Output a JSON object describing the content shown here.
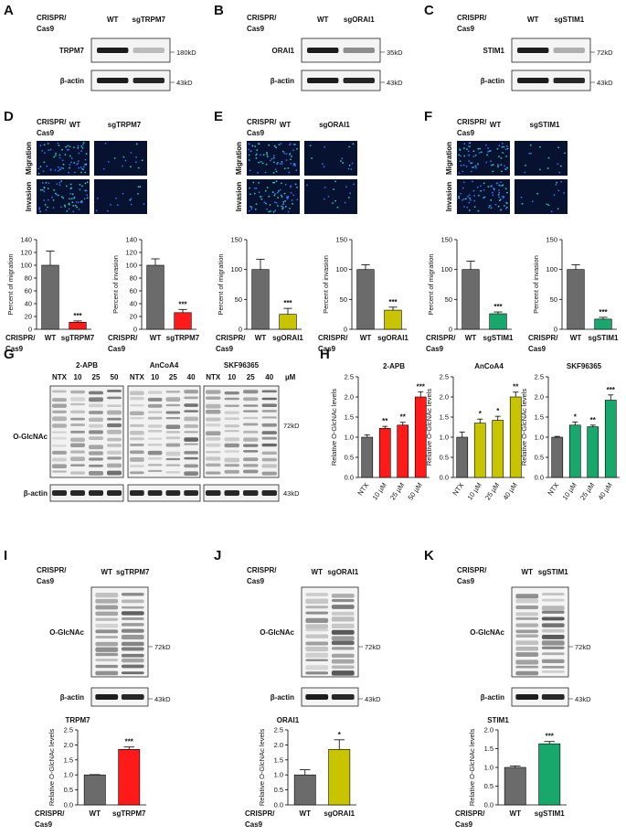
{
  "letters": [
    "A",
    "B",
    "C",
    "D",
    "E",
    "F",
    "G",
    "H",
    "I",
    "J",
    "K"
  ],
  "blots": [
    {
      "header": [
        "CRISPR/",
        "Cas9"
      ],
      "lanes": [
        "WT",
        "sgTRPM7"
      ],
      "rows": [
        {
          "label": "TRPM7",
          "marker": "180kD"
        },
        {
          "label": "β-actin",
          "marker": "43kD"
        }
      ]
    },
    {
      "header": [
        "CRISPR/",
        "Cas9"
      ],
      "lanes": [
        "WT",
        "sgORAI1"
      ],
      "rows": [
        {
          "label": "ORAI1",
          "marker": "35kD"
        },
        {
          "label": "β-actin",
          "marker": "43kD"
        }
      ]
    },
    {
      "header": [
        "CRISPR/",
        "Cas9"
      ],
      "lanes": [
        "WT",
        "sgSTIM1"
      ],
      "rows": [
        {
          "label": "STIM1",
          "marker": "72kD"
        },
        {
          "label": "β-actin",
          "marker": "43kD"
        }
      ]
    },
    {
      "header": [
        "CRISPR/",
        "Cas9"
      ],
      "lanes": [
        "WT",
        "sgTRPM7"
      ],
      "rows": [
        {
          "label": "O-GlcNAc",
          "marker": "72kD"
        },
        {
          "label": "β-actin",
          "marker": "43kD"
        }
      ]
    },
    {
      "header": [
        "CRISPR/",
        "Cas9"
      ],
      "lanes": [
        "WT",
        "sgORAI1"
      ],
      "rows": [
        {
          "label": "O-GlcNAc",
          "marker": "72kD"
        },
        {
          "label": "β-actin",
          "marker": "43kD"
        }
      ]
    },
    {
      "header": [
        "CRISPR/",
        "Cas9"
      ],
      "lanes": [
        "WT",
        "sgSTIM1"
      ],
      "rows": [
        {
          "label": "O-GlcNAc",
          "marker": "72kD"
        },
        {
          "label": "β-actin",
          "marker": "43kD"
        }
      ]
    }
  ],
  "images": [
    {
      "header": [
        "CRISPR/",
        "Cas9"
      ],
      "lanes": [
        "WT",
        "sgTRPM7"
      ],
      "rows": [
        "Migration",
        "Invasion"
      ]
    },
    {
      "header": [
        "CRISPR/",
        "Cas9"
      ],
      "lanes": [
        "WT",
        "sgORAI1"
      ],
      "rows": [
        "Migration",
        "Invasion"
      ]
    },
    {
      "header": [
        "CRISPR/",
        "Cas9"
      ],
      "lanes": [
        "WT",
        "sgSTIM1"
      ],
      "rows": [
        "Migration",
        "Invasion"
      ]
    }
  ],
  "gel": {
    "groups": [
      {
        "name": "2-APB",
        "lanes": [
          "NTX",
          "10",
          "25",
          "50"
        ]
      },
      {
        "name": "AnCoA4",
        "lanes": [
          "NTX",
          "10",
          "25",
          "40"
        ]
      },
      {
        "name": "SKF96365",
        "lanes": [
          "NTX",
          "10",
          "25",
          "40"
        ]
      }
    ],
    "unit": "µM",
    "rows": [
      {
        "label": "O-GlcNAc",
        "marker": "72kD"
      },
      {
        "label": "β-actin",
        "marker": "43kD"
      }
    ]
  },
  "chart_data": [
    {
      "type": "bar",
      "ylabel": "Percent of migration",
      "xlabel": [
        "CRISPR/",
        "Cas9"
      ],
      "categories": [
        "WT",
        "sgTRPM7"
      ],
      "values": [
        100,
        11
      ],
      "errors": [
        22,
        2
      ],
      "colors": [
        "#6b6b6b",
        "#ff1a1a"
      ],
      "annotations": [
        null,
        "***"
      ],
      "ylim": [
        0,
        140
      ],
      "yticks": [
        0,
        20,
        40,
        60,
        80,
        100,
        120,
        140
      ]
    },
    {
      "type": "bar",
      "ylabel": "Percent of invasion",
      "xlabel": [
        "CRISPR/",
        "Cas9"
      ],
      "categories": [
        "WT",
        "sgTRPM7"
      ],
      "values": [
        100,
        26
      ],
      "errors": [
        10,
        5
      ],
      "colors": [
        "#6b6b6b",
        "#ff1a1a"
      ],
      "annotations": [
        null,
        "***"
      ],
      "ylim": [
        0,
        140
      ],
      "yticks": [
        0,
        20,
        40,
        60,
        80,
        100,
        120,
        140
      ]
    },
    {
      "type": "bar",
      "ylabel": "Percent of migration",
      "xlabel": [
        "CRISPR/",
        "Cas9"
      ],
      "categories": [
        "WT",
        "sgORAI1"
      ],
      "values": [
        100,
        25
      ],
      "errors": [
        17,
        10
      ],
      "colors": [
        "#6b6b6b",
        "#c9c400"
      ],
      "annotations": [
        null,
        "***"
      ],
      "ylim": [
        0,
        150
      ],
      "yticks": [
        0,
        50,
        100,
        150
      ]
    },
    {
      "type": "bar",
      "ylabel": "Percent of invasion",
      "xlabel": [
        "CRISPR/",
        "Cas9"
      ],
      "categories": [
        "WT",
        "sgORAI1"
      ],
      "values": [
        100,
        32
      ],
      "errors": [
        8,
        5
      ],
      "colors": [
        "#6b6b6b",
        "#c9c400"
      ],
      "annotations": [
        null,
        "***"
      ],
      "ylim": [
        0,
        150
      ],
      "yticks": [
        0,
        50,
        100,
        150
      ]
    },
    {
      "type": "bar",
      "ylabel": "Percent of migration",
      "xlabel": [
        "CRISPR/",
        "Cas9"
      ],
      "categories": [
        "WT",
        "sgSTIM1"
      ],
      "values": [
        100,
        26
      ],
      "errors": [
        14,
        3
      ],
      "colors": [
        "#6b6b6b",
        "#18a86b"
      ],
      "annotations": [
        null,
        "***"
      ],
      "ylim": [
        0,
        150
      ],
      "yticks": [
        0,
        50,
        100,
        150
      ]
    },
    {
      "type": "bar",
      "ylabel": "Percent of invasion",
      "xlabel": [
        "CRISPR/",
        "Cas9"
      ],
      "categories": [
        "WT",
        "sgSTIM1"
      ],
      "values": [
        100,
        17
      ],
      "errors": [
        8,
        3
      ],
      "colors": [
        "#6b6b6b",
        "#18a86b"
      ],
      "annotations": [
        null,
        "***"
      ],
      "ylim": [
        0,
        150
      ],
      "yticks": [
        0,
        50,
        100,
        150
      ]
    },
    {
      "type": "bar",
      "title": "2-APB",
      "ylabel": "Relative O-GlcNAc levels",
      "categories": [
        "NTX",
        "10 µM",
        "25 µM",
        "50 µM"
      ],
      "values": [
        1.0,
        1.22,
        1.3,
        2.0
      ],
      "errors": [
        0.06,
        0.05,
        0.07,
        0.13
      ],
      "colors": [
        "#6b6b6b",
        "#ff1a1a",
        "#ff1a1a",
        "#ff1a1a"
      ],
      "annotations": [
        null,
        "**",
        "**",
        "***"
      ],
      "ylim": [
        0,
        2.5
      ],
      "yticks": [
        {
          "value": 0,
          "label": "0.0"
        },
        0.5,
        {
          "value": 1,
          "label": "1.0"
        },
        1.5,
        {
          "value": 2,
          "label": "2.0"
        },
        2.5
      ]
    },
    {
      "type": "bar",
      "title": "AnCoA4",
      "ylabel": "Relative O-GlcNAc levels",
      "categories": [
        "NTX",
        "10 µM",
        "25 µM",
        "40 µM"
      ],
      "values": [
        1.0,
        1.35,
        1.42,
        2.0
      ],
      "errors": [
        0.13,
        0.1,
        0.1,
        0.12
      ],
      "colors": [
        "#6b6b6b",
        "#c9c400",
        "#c9c400",
        "#c9c400"
      ],
      "annotations": [
        null,
        "*",
        "*",
        "**"
      ],
      "ylim": [
        0,
        2.5
      ],
      "yticks": [
        {
          "value": 0,
          "label": "0.0"
        },
        0.5,
        {
          "value": 1,
          "label": "1.0"
        },
        1.5,
        {
          "value": 2,
          "label": "2.0"
        },
        2.5
      ]
    },
    {
      "type": "bar",
      "title": "SKF96365",
      "ylabel": "Relative O-GlcNAc levels",
      "categories": [
        "NTX",
        "10 µM",
        "25 µM",
        "40 µM"
      ],
      "values": [
        1.0,
        1.3,
        1.26,
        1.92
      ],
      "errors": [
        0.02,
        0.08,
        0.04,
        0.13
      ],
      "colors": [
        "#6b6b6b",
        "#18a86b",
        "#18a86b",
        "#18a86b"
      ],
      "annotations": [
        null,
        "*",
        "**",
        "***"
      ],
      "ylim": [
        0,
        2.5
      ],
      "yticks": [
        {
          "value": 0,
          "label": "0.0"
        },
        0.5,
        {
          "value": 1,
          "label": "1.0"
        },
        1.5,
        {
          "value": 2,
          "label": "2.0"
        },
        2.5
      ]
    },
    {
      "type": "bar",
      "title": "TRPM7",
      "ylabel": "Relative O-GlcNAc levels",
      "xlabel": [
        "CRISPR/",
        "Cas9"
      ],
      "categories": [
        "WT",
        "sgTRPM7"
      ],
      "values": [
        1.0,
        1.85
      ],
      "errors": [
        0.01,
        0.08
      ],
      "colors": [
        "#6b6b6b",
        "#ff1a1a"
      ],
      "annotations": [
        null,
        "***"
      ],
      "ylim": [
        0,
        2.5
      ],
      "yticks": [
        {
          "value": 0,
          "label": "0.0"
        },
        0.5,
        {
          "value": 1,
          "label": "1.0"
        },
        1.5,
        {
          "value": 2,
          "label": "2.0"
        },
        2.5
      ]
    },
    {
      "type": "bar",
      "title": "ORAI1",
      "ylabel": "Relative O-GlcNAc levels",
      "xlabel": [
        "CRISPR/",
        "Cas9"
      ],
      "categories": [
        "WT",
        "sgORAI1"
      ],
      "values": [
        1.0,
        1.85
      ],
      "errors": [
        0.17,
        0.32
      ],
      "colors": [
        "#6b6b6b",
        "#c9c400"
      ],
      "annotations": [
        null,
        "*"
      ],
      "ylim": [
        0,
        2.5
      ],
      "yticks": [
        {
          "value": 0,
          "label": "0.0"
        },
        0.5,
        {
          "value": 1,
          "label": "1.0"
        },
        1.5,
        {
          "value": 2,
          "label": "2.0"
        },
        2.5
      ]
    },
    {
      "type": "bar",
      "title": "STIM1",
      "ylabel": "Relative O-GlcNAc levels",
      "xlabel": [
        "CRISPR/",
        "Cas9"
      ],
      "categories": [
        "WT",
        "sgSTIM1"
      ],
      "values": [
        1.0,
        1.63
      ],
      "errors": [
        0.04,
        0.06
      ],
      "colors": [
        "#6b6b6b",
        "#18a86b"
      ],
      "annotations": [
        null,
        "***"
      ],
      "ylim": [
        0,
        2
      ],
      "yticks": [
        {
          "value": 0,
          "label": "0.0"
        },
        0.5,
        {
          "value": 1,
          "label": "1.0"
        },
        1.5,
        {
          "value": 2,
          "label": "2.0"
        }
      ]
    }
  ]
}
